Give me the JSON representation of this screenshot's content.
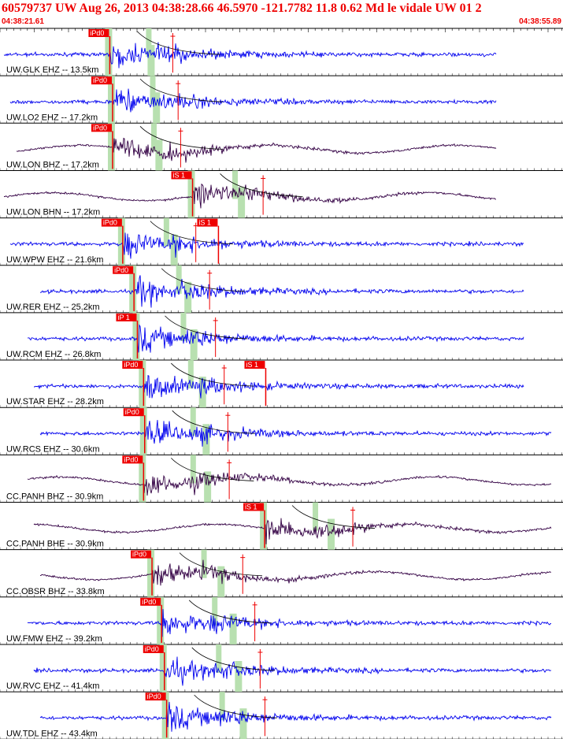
{
  "header": {
    "title": "60579737 UW Aug 26, 2013 04:38:28.66   46.5970 -121.7782 11.8 0.62 Md le vidale UW 01   2",
    "start_time": "04:38:21.61",
    "end_time": "04:38:55.89"
  },
  "colors": {
    "header_text": "#ee0000",
    "waveform_vertical": "#0000ee",
    "waveform_horizontal": "#330044",
    "pick_marker": "#ee0000",
    "pick_window": "#b8e0b0",
    "moveout_curve": "#000000",
    "grid_line": "#999999"
  },
  "traces": [
    {
      "label": "UW.GLK EHZ -- 13.5km",
      "component": "vertical",
      "picks": [
        {
          "label": "iPd0",
          "time": 0.195
        }
      ]
    },
    {
      "label": "UW.LO2 EHZ -- 17.2km",
      "component": "vertical",
      "picks": [
        {
          "label": "iPd0",
          "time": 0.2
        }
      ]
    },
    {
      "label": "UW.LON BHZ -- 17.2km",
      "component": "horizontal",
      "picks": [
        {
          "label": "iPd0",
          "time": 0.2
        }
      ]
    },
    {
      "label": "UW.LON BHN -- 17.2km",
      "component": "horizontal",
      "picks": [
        {
          "label": "iS 1",
          "time": 0.342
        }
      ]
    },
    {
      "label": "UW.WPW EHZ -- 21.6km",
      "component": "vertical",
      "picks": [
        {
          "label": "iPd0",
          "time": 0.218
        },
        {
          "label": "iS 1",
          "time": 0.388
        }
      ]
    },
    {
      "label": "UW.RER EHZ -- 25.2km",
      "component": "vertical",
      "picks": [
        {
          "label": "iPd0",
          "time": 0.238
        }
      ]
    },
    {
      "label": "UW.RCM EHZ -- 26.8km",
      "component": "vertical",
      "picks": [
        {
          "label": "iP 1",
          "time": 0.244
        }
      ]
    },
    {
      "label": "UW.STAR EHZ -- 28.2km",
      "component": "vertical",
      "picks": [
        {
          "label": "iPd0",
          "time": 0.255
        },
        {
          "label": "iS 1",
          "time": 0.472
        }
      ]
    },
    {
      "label": "UW.RCS EHZ -- 30.6km",
      "component": "vertical",
      "picks": [
        {
          "label": "iPd0",
          "time": 0.257
        }
      ]
    },
    {
      "label": "CC.PANH BHZ -- 30.9km",
      "component": "horizontal",
      "picks": [
        {
          "label": "iPd0",
          "time": 0.255
        }
      ]
    },
    {
      "label": "CC.PANH BHE -- 30.9km",
      "component": "horizontal",
      "picks": [
        {
          "label": "iS 1",
          "time": 0.47
        }
      ]
    },
    {
      "label": "CC.OBSR BHZ -- 33.8km",
      "component": "horizontal",
      "picks": [
        {
          "label": "iPd0",
          "time": 0.27
        }
      ]
    },
    {
      "label": "UW.FMW EHZ -- 39.2km",
      "component": "vertical",
      "picks": [
        {
          "label": "iPd0",
          "time": 0.287
        }
      ]
    },
    {
      "label": "UW.RVC EHZ -- 41.4km",
      "component": "vertical",
      "picks": [
        {
          "label": "iPd0",
          "time": 0.292
        }
      ]
    },
    {
      "label": "UW.TDL EHZ -- 43.4km",
      "component": "vertical",
      "picks": [
        {
          "label": "iPd0",
          "time": 0.296
        }
      ]
    }
  ]
}
